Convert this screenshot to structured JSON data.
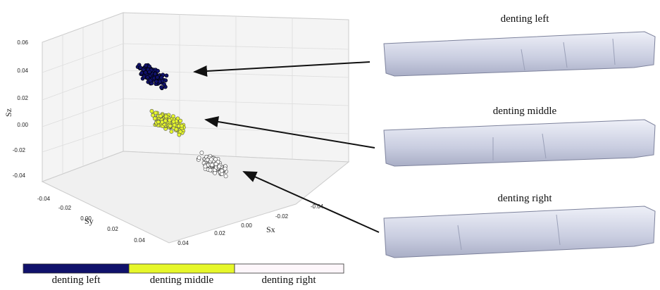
{
  "plot": {
    "z_axis_label": "Sz",
    "y_axis_label": "Sy",
    "x_axis_label": "Sx",
    "z_ticks": [
      "0.06",
      "0.04",
      "0.02",
      "0.00",
      "-0.02",
      "-0.04"
    ],
    "y_ticks": [
      "-0.04",
      "-0.02",
      "0.00",
      "0.02",
      "0.04"
    ],
    "x_ticks": [
      "0.04",
      "0.02",
      "0.00",
      "-0.02",
      "-0.04"
    ]
  },
  "legend": [
    "denting left",
    "denting middle",
    "denting right"
  ],
  "panels": [
    "denting left",
    "denting middle",
    "denting right"
  ]
}
